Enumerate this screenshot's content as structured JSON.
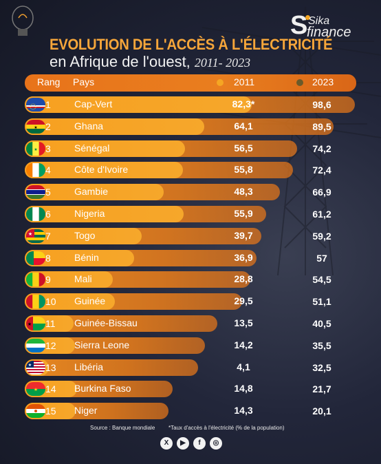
{
  "title_line1": "EVOLUTION DE L'ACCÈS À L'ÉLECTRICITÉ",
  "title_line2": "en Afrique de l'ouest,",
  "title_years": "2011- 2023",
  "logo": {
    "letter": "S",
    "top": "Sika",
    "bottom": "finance"
  },
  "header": {
    "rank": "Rang",
    "country": "Pays",
    "y2011": "2011",
    "y2023": "2023"
  },
  "colors": {
    "bar_2011": "#f6a320",
    "bar_2023": "#e87a1d",
    "dot_2011": "#f5a623",
    "dot_2023": "#6b5a2a"
  },
  "chart_data": {
    "type": "bar",
    "categories": [
      "Cap-Vert",
      "Ghana",
      "Sénégal",
      "Côte d'Ivoire",
      "Gambie",
      "Nigeria",
      "Togo",
      "Bénin",
      "Mali",
      "Guinée",
      "Guinée-Bissau",
      "Sierra Leone",
      "Libéria",
      "Burkina Faso",
      "Niger"
    ],
    "ranks": [
      "1",
      "2",
      "3",
      "4",
      "5",
      "6",
      "7",
      "8",
      "9",
      "10",
      "11",
      "12",
      "13",
      "14",
      "15"
    ],
    "series": [
      {
        "name": "2011",
        "values": [
          82.3,
          64.1,
          56.5,
          55.8,
          48.3,
          55.9,
          39.7,
          36.9,
          28.8,
          29.5,
          13.5,
          14.2,
          4.1,
          14.8,
          14.3
        ],
        "labels": [
          "82,3*",
          "64,1",
          "56,5",
          "55,8",
          "48,3",
          "55,9",
          "39,7",
          "36,9",
          "28,8",
          "29,5",
          "13,5",
          "14,2",
          "4,1",
          "14,8",
          "14,3"
        ]
      },
      {
        "name": "2023",
        "values": [
          98.6,
          89.5,
          74.2,
          72.4,
          66.9,
          61.2,
          59.2,
          57,
          54.5,
          51.1,
          40.5,
          35.5,
          32.5,
          21.7,
          20.1
        ],
        "labels": [
          "98,6",
          "89,5",
          "74,2",
          "72,4",
          "66,9",
          "61,2",
          "59,2",
          "57",
          "54,5",
          "51,1",
          "40,5",
          "35,5",
          "32,5",
          "21,7",
          "20,1"
        ]
      }
    ],
    "flags": [
      "flag-cape-verde",
      "flag-ghana",
      "flag-senegal",
      "flag-cote-divoire",
      "flag-gambia",
      "flag-nigeria",
      "flag-togo",
      "flag-benin",
      "flag-mali",
      "flag-guinea",
      "flag-guinea-bissau",
      "flag-sierra-leone",
      "flag-liberia",
      "flag-burkina-faso",
      "flag-niger"
    ],
    "ylim": [
      0,
      100
    ]
  },
  "footer": {
    "source": "Source : Banque mondiale",
    "note": "*Taux d'accès à l'électricité (% de la population)"
  },
  "social": [
    {
      "icon": "x-icon",
      "glyph": "X"
    },
    {
      "icon": "youtube-icon",
      "glyph": "▶"
    },
    {
      "icon": "facebook-icon",
      "glyph": "f"
    },
    {
      "icon": "instagram-icon",
      "glyph": "◎"
    }
  ]
}
